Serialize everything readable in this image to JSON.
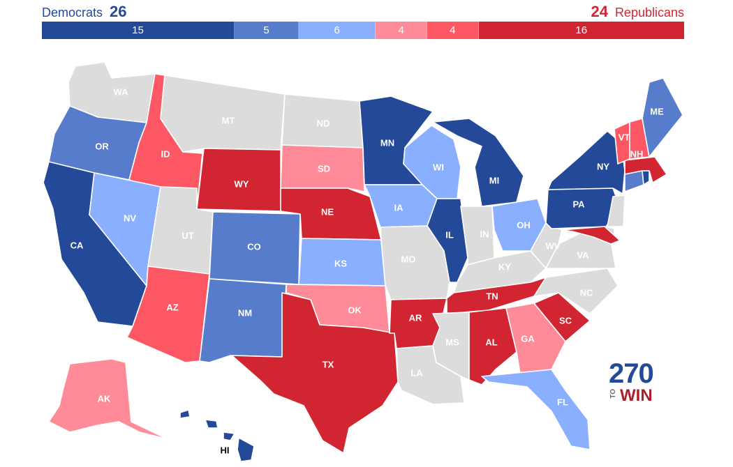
{
  "header": {
    "dem_label": "Democrats",
    "dem_total": "26",
    "rep_total": "24",
    "rep_label": "Republicans"
  },
  "colors": {
    "safe_dem": "#244999",
    "likely_dem": "#577ccc",
    "lean_dem": "#8aafff",
    "lean_rep": "#ff8b98",
    "likely_rep": "#ff5865",
    "safe_rep": "#d22532",
    "tossup": "#dcdcdc",
    "dem_text": "#244999",
    "rep_text": "#d22532",
    "label_light": "#ffffff",
    "label_dark": "#000000"
  },
  "bar": [
    {
      "key": "safe_dem",
      "value": 15
    },
    {
      "key": "likely_dem",
      "value": 5
    },
    {
      "key": "lean_dem",
      "value": 6
    },
    {
      "key": "lean_rep",
      "value": 4
    },
    {
      "key": "likely_rep",
      "value": 4
    },
    {
      "key": "safe_rep",
      "value": 16
    }
  ],
  "states": [
    {
      "abbr": "WA",
      "category": "tossup"
    },
    {
      "abbr": "OR",
      "category": "likely_dem"
    },
    {
      "abbr": "CA",
      "category": "safe_dem"
    },
    {
      "abbr": "ID",
      "category": "likely_rep"
    },
    {
      "abbr": "NV",
      "category": "lean_dem"
    },
    {
      "abbr": "MT",
      "category": "tossup"
    },
    {
      "abbr": "WY",
      "category": "safe_rep"
    },
    {
      "abbr": "UT",
      "category": "tossup"
    },
    {
      "abbr": "AZ",
      "category": "likely_rep"
    },
    {
      "abbr": "CO",
      "category": "likely_dem"
    },
    {
      "abbr": "NM",
      "category": "likely_dem"
    },
    {
      "abbr": "ND",
      "category": "tossup"
    },
    {
      "abbr": "SD",
      "category": "lean_rep"
    },
    {
      "abbr": "NE",
      "category": "safe_rep"
    },
    {
      "abbr": "KS",
      "category": "lean_dem"
    },
    {
      "abbr": "OK",
      "category": "lean_rep"
    },
    {
      "abbr": "TX",
      "category": "safe_rep"
    },
    {
      "abbr": "MN",
      "category": "safe_dem"
    },
    {
      "abbr": "IA",
      "category": "lean_dem"
    },
    {
      "abbr": "MO",
      "category": "tossup"
    },
    {
      "abbr": "AR",
      "category": "safe_rep"
    },
    {
      "abbr": "LA",
      "category": "tossup"
    },
    {
      "abbr": "WI",
      "category": "lean_dem"
    },
    {
      "abbr": "IL",
      "category": "safe_dem"
    },
    {
      "abbr": "MI",
      "category": "safe_dem"
    },
    {
      "abbr": "IN",
      "category": "tossup"
    },
    {
      "abbr": "OH",
      "category": "lean_dem"
    },
    {
      "abbr": "KY",
      "category": "tossup"
    },
    {
      "abbr": "TN",
      "category": "safe_rep"
    },
    {
      "abbr": "MS",
      "category": "tossup"
    },
    {
      "abbr": "AL",
      "category": "safe_rep"
    },
    {
      "abbr": "GA",
      "category": "lean_rep"
    },
    {
      "abbr": "FL",
      "category": "lean_dem"
    },
    {
      "abbr": "SC",
      "category": "safe_rep"
    },
    {
      "abbr": "NC",
      "category": "tossup"
    },
    {
      "abbr": "VA",
      "category": "tossup"
    },
    {
      "abbr": "WV",
      "category": "tossup"
    },
    {
      "abbr": "PA",
      "category": "safe_dem"
    },
    {
      "abbr": "NY",
      "category": "safe_dem"
    },
    {
      "abbr": "NJ",
      "category": "tossup"
    },
    {
      "abbr": "DE",
      "category": "tossup"
    },
    {
      "abbr": "MD",
      "category": "safe_rep"
    },
    {
      "abbr": "CT",
      "category": "likely_dem"
    },
    {
      "abbr": "RI",
      "category": "safe_dem"
    },
    {
      "abbr": "MA",
      "category": "safe_rep"
    },
    {
      "abbr": "VT",
      "category": "likely_rep"
    },
    {
      "abbr": "NH",
      "category": "likely_rep"
    },
    {
      "abbr": "ME",
      "category": "likely_dem"
    },
    {
      "abbr": "AK",
      "category": "lean_rep"
    },
    {
      "abbr": "HI",
      "category": "safe_dem"
    }
  ],
  "logo": {
    "line1": "270",
    "line2_small": "TO",
    "line2": "WIN"
  }
}
